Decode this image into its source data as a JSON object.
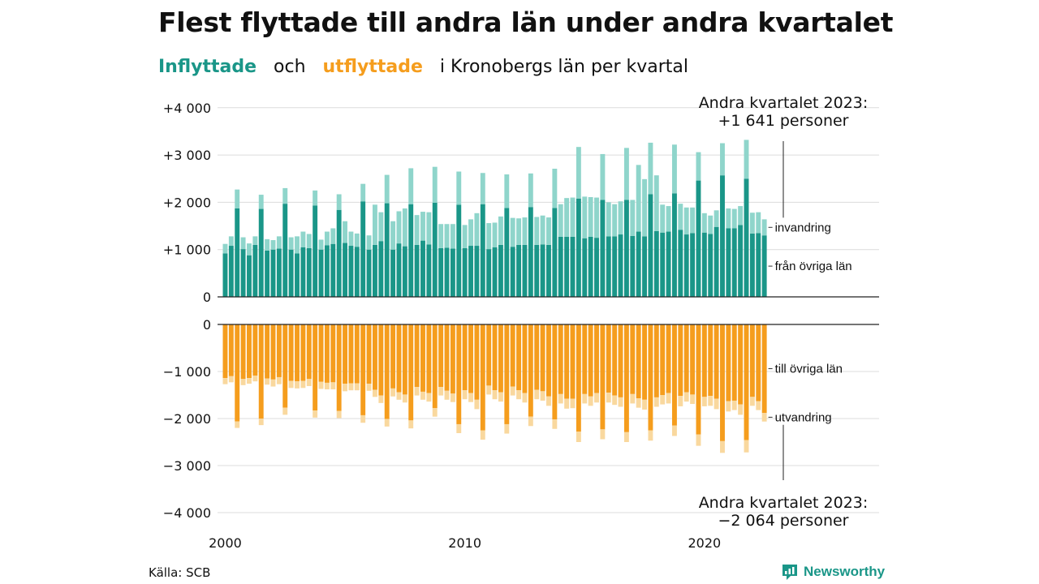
{
  "title": "Flest flyttade till andra län under andra kvartalet",
  "subtitle": {
    "inflyttade": "Inflyttade",
    "och": "och",
    "utflyttade": "utflyttade",
    "rest": "i Kronobergs län per kvartal"
  },
  "source": "Källa: SCB",
  "brand": "Newsworthy",
  "colors": {
    "in_domestic": "#1a9688",
    "in_immigration": "#8fd5cb",
    "out_domestic": "#f59d1d",
    "out_emigration": "#f9d89e"
  },
  "chart_data": {
    "type": "bar",
    "stacked": true,
    "x_labels": [
      "2000",
      "2010",
      "2020"
    ],
    "x_range": [
      "2000 Q1",
      "2023 Q2"
    ],
    "y_ticks_top": [
      "+4 000",
      "+3 000",
      "+2 000",
      "+1 000",
      "0"
    ],
    "y_ticks_bottom": [
      "0",
      "−1 000",
      "−2 000",
      "−3 000",
      "−4 000"
    ],
    "ylim_top": [
      0,
      4000
    ],
    "ylim_bottom": [
      -4000,
      0
    ],
    "series_labels": {
      "in_immigration": "invandring",
      "in_domestic": "från övriga län",
      "out_domestic": "till övriga län",
      "out_emigration": "utvandring"
    },
    "annotations": {
      "top_line1": "Andra kvartalet 2023:",
      "top_line2": "+1 641 personer",
      "bottom_line1": "Andra kvartalet 2023:",
      "bottom_line2": "−2 064 personer"
    },
    "in_domestic": [
      920,
      1080,
      1870,
      1010,
      880,
      1100,
      1860,
      980,
      1000,
      1020,
      1970,
      1000,
      920,
      1050,
      1030,
      1930,
      1000,
      1090,
      1120,
      1840,
      1140,
      1080,
      1060,
      2020,
      1000,
      1100,
      1180,
      1980,
      1000,
      1130,
      1070,
      1960,
      1100,
      1190,
      1110,
      1990,
      1030,
      1040,
      1020,
      1950,
      1030,
      1080,
      1080,
      1960,
      1010,
      1050,
      1100,
      1880,
      1060,
      1100,
      1100,
      1900,
      1100,
      1110,
      1100,
      1880,
      1270,
      1270,
      1270,
      2080,
      1240,
      1270,
      1250,
      2050,
      1280,
      1280,
      1320,
      2050,
      1290,
      1380,
      1280,
      2170,
      1390,
      1360,
      1380,
      2190,
      1420,
      1320,
      1350,
      2460,
      1360,
      1330,
      1480,
      2570,
      1450,
      1450,
      1520,
      2500,
      1340,
      1350,
      1300
    ],
    "in_immigration": [
      200,
      200,
      400,
      250,
      250,
      180,
      300,
      240,
      200,
      260,
      330,
      260,
      360,
      330,
      300,
      320,
      210,
      290,
      330,
      330,
      460,
      300,
      280,
      370,
      300,
      850,
      610,
      600,
      600,
      680,
      800,
      760,
      630,
      610,
      680,
      760,
      510,
      500,
      520,
      700,
      490,
      560,
      690,
      660,
      550,
      520,
      600,
      710,
      610,
      560,
      580,
      710,
      590,
      610,
      580,
      830,
      690,
      820,
      830,
      1090,
      880,
      840,
      850,
      970,
      720,
      680,
      700,
      1100,
      760,
      1410,
      1210,
      1090,
      1180,
      590,
      540,
      1030,
      550,
      570,
      540,
      600,
      410,
      390,
      350,
      680,
      420,
      410,
      400,
      820,
      440,
      440,
      340
    ],
    "out_domestic": [
      -1140,
      -1100,
      -2060,
      -1160,
      -1140,
      -1090,
      -2000,
      -1150,
      -1170,
      -1120,
      -1770,
      -1200,
      -1210,
      -1200,
      -1160,
      -1830,
      -1220,
      -1240,
      -1230,
      -1840,
      -1260,
      -1250,
      -1250,
      -1930,
      -1260,
      -1390,
      -1510,
      -2010,
      -1360,
      -1440,
      -1490,
      -2040,
      -1330,
      -1430,
      -1460,
      -1780,
      -1330,
      -1410,
      -1470,
      -2120,
      -1400,
      -1460,
      -1600,
      -2250,
      -1300,
      -1400,
      -1440,
      -2120,
      -1320,
      -1400,
      -1460,
      -1960,
      -1390,
      -1420,
      -1530,
      -2020,
      -1480,
      -1580,
      -1580,
      -2280,
      -1480,
      -1530,
      -1460,
      -2230,
      -1450,
      -1510,
      -1550,
      -2290,
      -1480,
      -1570,
      -1600,
      -2250,
      -1550,
      -1500,
      -1460,
      -2150,
      -1520,
      -1440,
      -1490,
      -2340,
      -1540,
      -1520,
      -1580,
      -2480,
      -1630,
      -1620,
      -1700,
      -2460,
      -1540,
      -1630,
      -1880
    ],
    "out_emigration": [
      -130,
      -130,
      -140,
      -130,
      -120,
      -120,
      -140,
      -130,
      -150,
      -150,
      -150,
      -150,
      -150,
      -150,
      -150,
      -150,
      -150,
      -140,
      -150,
      -150,
      -160,
      -150,
      -150,
      -160,
      -150,
      -150,
      -160,
      -160,
      -170,
      -160,
      -170,
      -170,
      -180,
      -170,
      -180,
      -180,
      -180,
      -190,
      -180,
      -190,
      -190,
      -190,
      -200,
      -200,
      -190,
      -190,
      -200,
      -200,
      -190,
      -190,
      -200,
      -200,
      -200,
      -200,
      -200,
      -200,
      -200,
      -210,
      -200,
      -220,
      -200,
      -200,
      -200,
      -210,
      -210,
      -200,
      -200,
      -210,
      -200,
      -200,
      -210,
      -220,
      -200,
      -200,
      -220,
      -220,
      -220,
      -200,
      -200,
      -240,
      -200,
      -210,
      -220,
      -250,
      -220,
      -200,
      -220,
      -260,
      -190,
      -190,
      -184
    ]
  }
}
